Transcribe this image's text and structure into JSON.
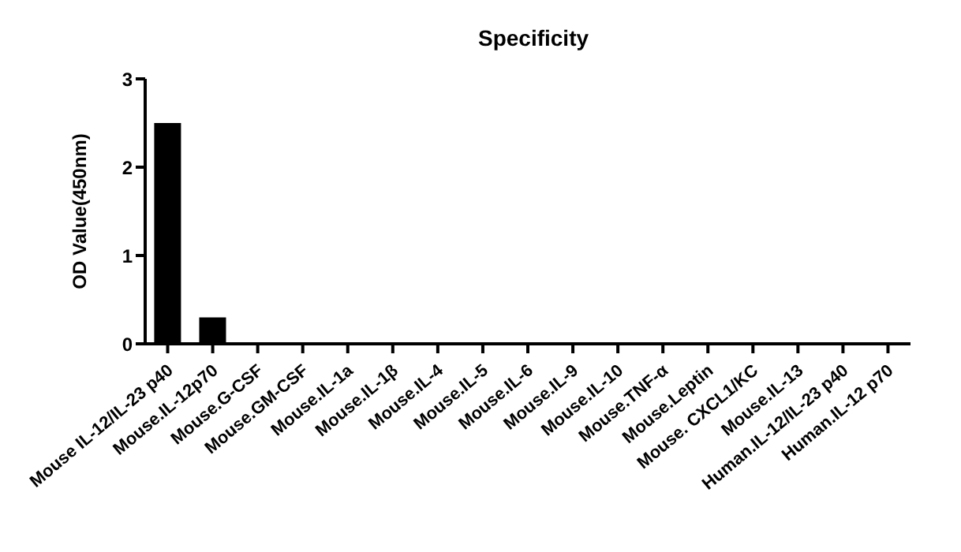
{
  "chart_data": {
    "type": "bar",
    "title": "Specificity",
    "ylabel": "OD Value(450nm)",
    "categories": [
      "Mouse IL-12/IL-23 p40",
      "Mouse.IL-12p70",
      "Mouse.G-CSF",
      "Mouse.GM-CSF",
      "Mouse.IL-1a",
      "Mouse.IL-1β",
      "Mouse.IL-4",
      "Mouse.IL-5",
      "Mouse.IL-6",
      "Mouse.IL-9",
      "Mouse.IL-10",
      "Mouse.TNF-α",
      "Mouse.Leptin",
      "Mouse. CXCL1/KC",
      "Mouse.IL-13",
      "Human.IL-12/IL-23 p40",
      "Human.IL-12 p70"
    ],
    "values": [
      2.5,
      0.3,
      0,
      0,
      0,
      0,
      0,
      0,
      0,
      0,
      0,
      0,
      0,
      0,
      0,
      0,
      0
    ],
    "color": "#000000",
    "ylim": [
      0,
      3
    ],
    "yticks": [
      0,
      1,
      2,
      3
    ],
    "grid": false
  }
}
